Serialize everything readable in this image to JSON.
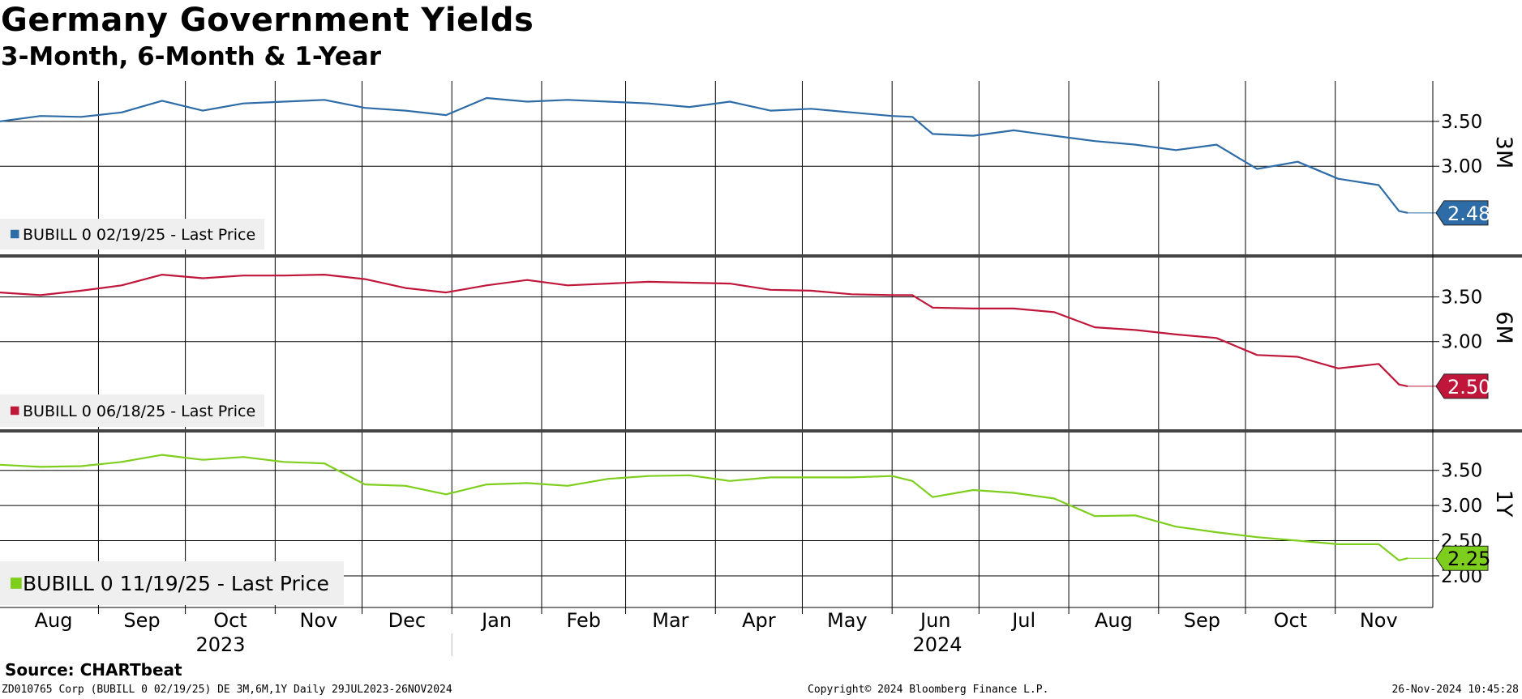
{
  "header": {
    "title": "Germany Government Yields",
    "subtitle": "3-Month, 6-Month & 1-Year"
  },
  "footer": {
    "source": "Source:  CHARTbeat",
    "left": "ZD010765 Corp (BUBILL 0 02/19/25) DE 3M,6M,1Y  Daily 29JUL2023-26NOV2024",
    "middle": "Copyright© 2024 Bloomberg Finance L.P.",
    "right": "26-Nov-2024 10:45:28"
  },
  "colors": {
    "series_3m": "#2e6ca8",
    "series_6m": "#c0163a",
    "series_1y": "#7ecf1d",
    "grid": "#000000",
    "panel_divider": "#444444",
    "legend_bg": "#efefef"
  },
  "chart_data": {
    "type": "line",
    "x_axis": {
      "months": [
        "Aug",
        "Sep",
        "Oct",
        "Nov",
        "Dec",
        "Jan",
        "Feb",
        "Mar",
        "Apr",
        "May",
        "Jun",
        "Jul",
        "Aug",
        "Sep",
        "Oct",
        "Nov"
      ],
      "years": [
        "2023",
        "2024"
      ],
      "range": [
        "2023-07-29",
        "2024-11-26"
      ]
    },
    "panels": [
      {
        "axis_label": "3M",
        "legend": "BUBILL 0 02/19/25 - Last Price",
        "last_value": "2.48",
        "yticks": [
          "3.50",
          "3.00"
        ],
        "ylim": [
          2.0,
          3.95
        ],
        "series": {
          "name": "BUBILL 0 02/19/25",
          "x": [
            "2023-07-29",
            "2023-08-12",
            "2023-08-26",
            "2023-09-09",
            "2023-09-23",
            "2023-10-07",
            "2023-10-21",
            "2023-11-04",
            "2023-11-18",
            "2023-12-02",
            "2023-12-16",
            "2023-12-30",
            "2024-01-13",
            "2024-01-27",
            "2024-02-10",
            "2024-02-24",
            "2024-03-09",
            "2024-03-23",
            "2024-04-06",
            "2024-04-20",
            "2024-05-04",
            "2024-05-18",
            "2024-06-01",
            "2024-06-08",
            "2024-06-15",
            "2024-06-29",
            "2024-07-13",
            "2024-07-27",
            "2024-08-10",
            "2024-08-24",
            "2024-09-07",
            "2024-09-21",
            "2024-10-05",
            "2024-10-19",
            "2024-11-02",
            "2024-11-16",
            "2024-11-23",
            "2024-11-26"
          ],
          "y": [
            3.5,
            3.56,
            3.55,
            3.6,
            3.73,
            3.62,
            3.7,
            3.72,
            3.74,
            3.65,
            3.62,
            3.57,
            3.76,
            3.72,
            3.74,
            3.72,
            3.7,
            3.66,
            3.72,
            3.62,
            3.64,
            3.6,
            3.56,
            3.55,
            3.36,
            3.34,
            3.4,
            3.34,
            3.28,
            3.24,
            3.18,
            3.24,
            2.97,
            3.05,
            2.86,
            2.79,
            2.5,
            2.48
          ]
        }
      },
      {
        "axis_label": "6M",
        "legend": "BUBILL 0 06/18/25 - Last Price",
        "last_value": "2.50",
        "yticks": [
          "3.50",
          "3.00"
        ],
        "ylim": [
          2.0,
          3.95
        ],
        "series": {
          "name": "BUBILL 0 06/18/25",
          "x": [
            "2023-07-29",
            "2023-08-12",
            "2023-08-26",
            "2023-09-09",
            "2023-09-23",
            "2023-10-07",
            "2023-10-21",
            "2023-11-04",
            "2023-11-18",
            "2023-12-02",
            "2023-12-16",
            "2023-12-30",
            "2024-01-13",
            "2024-01-27",
            "2024-02-10",
            "2024-02-24",
            "2024-03-09",
            "2024-03-23",
            "2024-04-06",
            "2024-04-20",
            "2024-05-04",
            "2024-05-18",
            "2024-06-01",
            "2024-06-08",
            "2024-06-15",
            "2024-06-29",
            "2024-07-13",
            "2024-07-27",
            "2024-08-10",
            "2024-08-24",
            "2024-09-07",
            "2024-09-21",
            "2024-10-05",
            "2024-10-19",
            "2024-11-02",
            "2024-11-16",
            "2024-11-23",
            "2024-11-26"
          ],
          "y": [
            3.55,
            3.52,
            3.57,
            3.63,
            3.75,
            3.71,
            3.74,
            3.74,
            3.75,
            3.7,
            3.6,
            3.55,
            3.63,
            3.69,
            3.63,
            3.65,
            3.67,
            3.66,
            3.65,
            3.58,
            3.57,
            3.53,
            3.52,
            3.52,
            3.38,
            3.37,
            3.37,
            3.33,
            3.16,
            3.13,
            3.08,
            3.04,
            2.85,
            2.83,
            2.7,
            2.75,
            2.52,
            2.5
          ]
        }
      },
      {
        "axis_label": "1Y",
        "legend": "BUBILL 0 11/19/25 - Last Price",
        "last_value": "2.25",
        "yticks": [
          "3.50",
          "3.00",
          "2.50",
          "2.00"
        ],
        "ylim": [
          1.55,
          4.05
        ],
        "series": {
          "name": "BUBILL 0 11/19/25",
          "x": [
            "2023-07-29",
            "2023-08-12",
            "2023-08-26",
            "2023-09-09",
            "2023-09-23",
            "2023-10-07",
            "2023-10-21",
            "2023-11-04",
            "2023-11-18",
            "2023-12-02",
            "2023-12-16",
            "2023-12-30",
            "2024-01-13",
            "2024-01-27",
            "2024-02-10",
            "2024-02-24",
            "2024-03-09",
            "2024-03-23",
            "2024-04-06",
            "2024-04-20",
            "2024-05-04",
            "2024-05-18",
            "2024-06-01",
            "2024-06-08",
            "2024-06-15",
            "2024-06-29",
            "2024-07-13",
            "2024-07-27",
            "2024-08-10",
            "2024-08-24",
            "2024-09-07",
            "2024-09-21",
            "2024-10-05",
            "2024-10-19",
            "2024-11-02",
            "2024-11-16",
            "2024-11-23",
            "2024-11-26"
          ],
          "y": [
            3.58,
            3.55,
            3.56,
            3.62,
            3.72,
            3.65,
            3.69,
            3.62,
            3.6,
            3.3,
            3.28,
            3.16,
            3.3,
            3.32,
            3.28,
            3.38,
            3.42,
            3.43,
            3.35,
            3.4,
            3.4,
            3.4,
            3.42,
            3.35,
            3.12,
            3.22,
            3.18,
            3.1,
            2.85,
            2.86,
            2.7,
            2.62,
            2.55,
            2.5,
            2.45,
            2.45,
            2.22,
            2.25
          ]
        }
      }
    ]
  }
}
